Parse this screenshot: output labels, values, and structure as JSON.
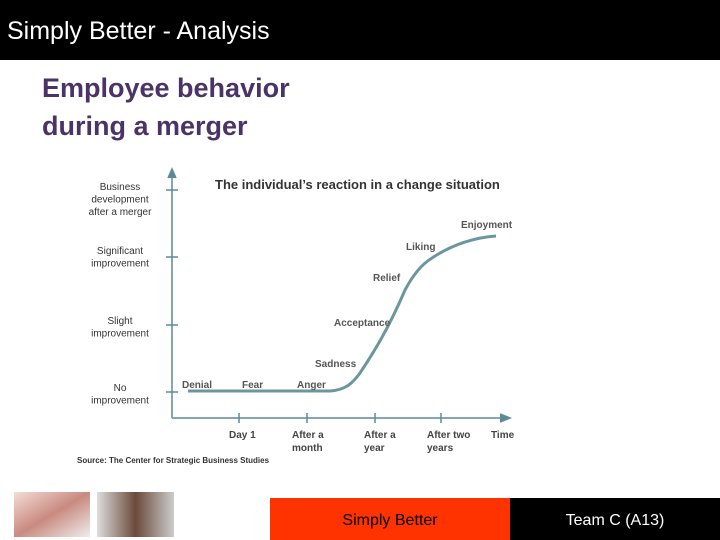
{
  "header": {
    "title": "Simply Better - Analysis"
  },
  "slide": {
    "heading": [
      "Employee behavior",
      "during a merger"
    ]
  },
  "diagram": {
    "title": "The individual’s reaction in a change situation",
    "y_labels": [
      [
        "Business",
        "development",
        "after a merger"
      ],
      [
        "Significant",
        "improvement"
      ],
      [
        "Slight",
        "improvement"
      ],
      [
        "No",
        "improvement"
      ]
    ],
    "x_labels": [
      [
        "Day 1"
      ],
      [
        "After a",
        "month"
      ],
      [
        "After a",
        "year"
      ],
      [
        "After two",
        "years"
      ],
      [
        "Time"
      ]
    ],
    "stages": [
      "Denial",
      "Fear",
      "Anger",
      "Sadness",
      "Acceptance",
      "Relief",
      "Liking",
      "Enjoyment"
    ],
    "source": "Source: The Center for Strategic Business Studies"
  },
  "footer": {
    "center": "Simply Better",
    "right": "Team C (A13)"
  }
}
